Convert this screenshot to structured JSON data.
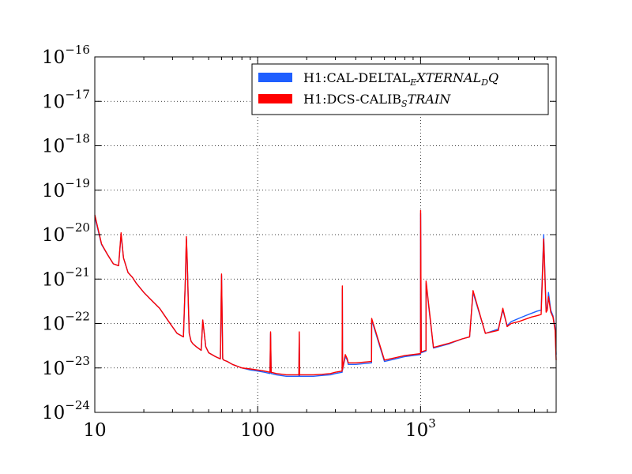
{
  "chart_data": {
    "type": "line",
    "title": "",
    "xlabel": "",
    "ylabel": "",
    "xscale": "log",
    "yscale": "log",
    "xlim": [
      10,
      6800
    ],
    "ylim": [
      1e-24,
      1e-16
    ],
    "grid": true,
    "legend_position": "top-right",
    "x_ticks": [
      {
        "value": 10,
        "label": "10"
      },
      {
        "value": 100,
        "label": "100"
      },
      {
        "value": 1000,
        "base": "10",
        "exp": "3"
      }
    ],
    "y_ticks": [
      {
        "value": 1e-16,
        "base": "10",
        "exp": "−16"
      },
      {
        "value": 1e-17,
        "base": "10",
        "exp": "−17"
      },
      {
        "value": 1e-18,
        "base": "10",
        "exp": "−18"
      },
      {
        "value": 1e-19,
        "base": "10",
        "exp": "−19"
      },
      {
        "value": 1e-20,
        "base": "10",
        "exp": "−20"
      },
      {
        "value": 1e-21,
        "base": "10",
        "exp": "−21"
      },
      {
        "value": 1e-22,
        "base": "10",
        "exp": "−22"
      },
      {
        "value": 1e-23,
        "base": "10",
        "exp": "−23"
      },
      {
        "value": 1e-24,
        "base": "10",
        "exp": "−24"
      }
    ],
    "series": [
      {
        "name_parts": [
          {
            "text": "H1:CAL-DELTAL",
            "style": "normal"
          },
          {
            "text": "E",
            "style": "sub"
          },
          {
            "text": "XTERNAL",
            "style": "italic"
          },
          {
            "text": "D",
            "style": "sub"
          },
          {
            "text": "Q",
            "style": "italic"
          }
        ],
        "color": "#1f5fff",
        "x": [
          10,
          11,
          12,
          13,
          14,
          14.5,
          15,
          16,
          17,
          18,
          20,
          22,
          25,
          28,
          32,
          35,
          36,
          36.5,
          37,
          37.5,
          38,
          39,
          40,
          42,
          45,
          46,
          48,
          50,
          55,
          59,
          60,
          61,
          62,
          65,
          70,
          80,
          90,
          100,
          110,
          119,
          120,
          121,
          130,
          150,
          170,
          179,
          180,
          181,
          200,
          220,
          250,
          280,
          300,
          330,
          331,
          332,
          345,
          355,
          360,
          400,
          500,
          501,
          600,
          700,
          800,
          1000,
          1001,
          1010,
          1080,
          1081,
          1200,
          1500,
          1800,
          2000,
          2100,
          2500,
          3000,
          3200,
          3400,
          3600,
          4000,
          4400,
          4800,
          5200,
          5500,
          5700,
          5900,
          6000,
          6100,
          6300,
          6500,
          6700,
          6800
        ],
        "values": [
          2.5e-20,
          6e-21,
          3.5e-21,
          2.2e-21,
          2e-21,
          1e-20,
          3e-21,
          1.4e-21,
          1.1e-21,
          8e-22,
          5e-22,
          3.5e-22,
          2.2e-22,
          1.2e-22,
          6e-23,
          5e-23,
          1e-21,
          8e-21,
          2e-21,
          3e-22,
          6e-23,
          4e-23,
          3.5e-23,
          3e-23,
          2.5e-23,
          1.2e-22,
          3e-23,
          2.2e-23,
          1.8e-23,
          1.6e-23,
          1.2e-21,
          1.6e-23,
          1.5e-23,
          1.4e-23,
          1.2e-23,
          1e-23,
          9e-24,
          8.5e-24,
          8e-24,
          7.5e-24,
          6e-23,
          7.5e-24,
          7e-24,
          6.5e-24,
          6.5e-24,
          6.5e-24,
          6e-23,
          6.5e-24,
          6.5e-24,
          6.5e-24,
          6.8e-24,
          7e-24,
          7.5e-24,
          8e-24,
          6e-22,
          9e-24,
          1.8e-23,
          1.5e-23,
          1.2e-23,
          1.2e-23,
          1.3e-23,
          1.2e-22,
          1.4e-23,
          1.6e-23,
          1.8e-23,
          2e-23,
          3e-20,
          2.2e-23,
          2.4e-23,
          8e-22,
          2.8e-23,
          3.5e-23,
          4.5e-23,
          5e-23,
          5e-22,
          6e-23,
          7.5e-23,
          2e-22,
          9e-23,
          1.1e-22,
          1.3e-22,
          1.5e-22,
          1.7e-22,
          1.9e-22,
          2e-22,
          1e-20,
          2.1e-22,
          2.3e-22,
          5e-22,
          2e-22,
          1.5e-22,
          8e-23,
          2e-23
        ]
      },
      {
        "name_parts": [
          {
            "text": "H1:DCS-CALIB",
            "style": "normal"
          },
          {
            "text": "S",
            "style": "sub"
          },
          {
            "text": "TRAIN",
            "style": "italic"
          }
        ],
        "color": "#ff0000",
        "x": [
          10,
          11,
          12,
          13,
          14,
          14.5,
          15,
          16,
          17,
          18,
          20,
          22,
          25,
          28,
          32,
          35,
          36,
          36.5,
          37,
          37.5,
          38,
          39,
          40,
          42,
          45,
          46,
          48,
          50,
          55,
          59,
          60,
          61,
          62,
          65,
          70,
          80,
          90,
          100,
          110,
          119,
          120,
          121,
          130,
          150,
          170,
          179,
          180,
          181,
          200,
          220,
          250,
          280,
          300,
          330,
          331,
          332,
          345,
          355,
          360,
          400,
          500,
          501,
          600,
          700,
          800,
          1000,
          1001,
          1010,
          1080,
          1081,
          1200,
          1500,
          1800,
          2000,
          2100,
          2500,
          3000,
          3200,
          3400,
          3600,
          4000,
          4400,
          4800,
          5200,
          5500,
          5700,
          5900,
          6000,
          6100,
          6300,
          6500,
          6700,
          6800
        ],
        "values": [
          2.8e-20,
          6.2e-21,
          3.5e-21,
          2.2e-21,
          2e-21,
          1.1e-20,
          3e-21,
          1.4e-21,
          1.1e-21,
          8e-22,
          5e-22,
          3.5e-22,
          2.2e-22,
          1.2e-22,
          6e-23,
          5e-23,
          1.1e-21,
          9e-21,
          2.2e-21,
          3e-22,
          6e-23,
          4e-23,
          3.5e-23,
          3e-23,
          2.5e-23,
          1.2e-22,
          3e-23,
          2.2e-23,
          1.8e-23,
          1.6e-23,
          1.3e-21,
          1.6e-23,
          1.5e-23,
          1.4e-23,
          1.2e-23,
          1e-23,
          9.5e-24,
          9e-24,
          8.5e-24,
          8e-24,
          6.5e-23,
          8e-24,
          7.5e-24,
          7e-24,
          7e-24,
          7e-24,
          6.5e-23,
          7e-24,
          7e-24,
          7e-24,
          7.2e-24,
          7.5e-24,
          8e-24,
          8.5e-24,
          7e-22,
          9.5e-24,
          2e-23,
          1.6e-23,
          1.3e-23,
          1.3e-23,
          1.4e-23,
          1.3e-22,
          1.5e-23,
          1.7e-23,
          1.9e-23,
          2.1e-23,
          3.5e-20,
          2.3e-23,
          2.5e-23,
          9e-22,
          2.9e-23,
          3.6e-23,
          4.5e-23,
          5e-23,
          5.5e-22,
          6e-23,
          7e-23,
          2.2e-22,
          8.5e-23,
          1e-22,
          1.1e-22,
          1.25e-22,
          1.4e-22,
          1.5e-22,
          1.6e-22,
          8e-21,
          1.8e-22,
          2e-22,
          4e-22,
          1.8e-22,
          1.4e-22,
          7e-23,
          1.5e-23
        ]
      }
    ]
  }
}
